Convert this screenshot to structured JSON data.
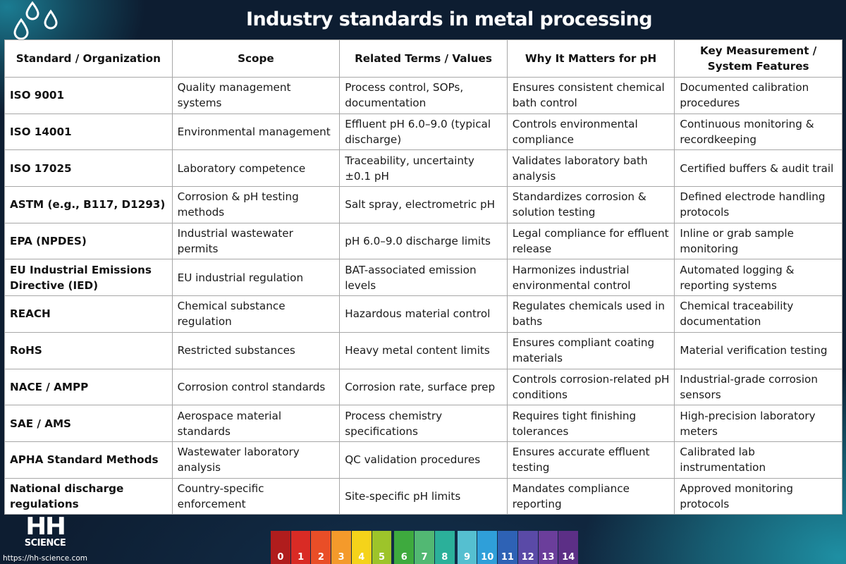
{
  "title": "Industry standards in metal processing",
  "table": {
    "headers": [
      "Standard / Organization",
      "Scope",
      "Related Terms / Values",
      "Why It Matters for pH",
      "Key Measurement / System Features"
    ],
    "rows": [
      [
        "ISO 9001",
        "Quality management systems",
        "Process control, SOPs, documentation",
        "Ensures consistent chemical bath control",
        "Documented calibration procedures"
      ],
      [
        "ISO 14001",
        "Environmental management",
        "Effluent pH 6.0–9.0 (typical discharge)",
        "Controls environmental compliance",
        "Continuous monitoring & recordkeeping"
      ],
      [
        "ISO 17025",
        "Laboratory competence",
        "Traceability, uncertainty ±0.1 pH",
        "Validates laboratory bath analysis",
        "Certified buffers & audit trail"
      ],
      [
        "ASTM (e.g., B117, D1293)",
        "Corrosion & pH testing methods",
        "Salt spray, electrometric pH",
        "Standardizes corrosion & solution testing",
        "Defined electrode handling protocols"
      ],
      [
        "EPA (NPDES)",
        "Industrial wastewater permits",
        "pH 6.0–9.0 discharge limits",
        "Legal compliance for effluent release",
        "Inline or grab sample monitoring"
      ],
      [
        "EU Industrial Emissions Directive (IED)",
        "EU industrial regulation",
        "BAT-associated emission levels",
        "Harmonizes industrial environmental control",
        "Automated logging & reporting systems"
      ],
      [
        "REACH",
        "Chemical substance regulation",
        "Hazardous material control",
        "Regulates chemicals used in baths",
        "Chemical traceability documentation"
      ],
      [
        "RoHS",
        "Restricted substances",
        "Heavy metal content limits",
        "Ensures compliant coating materials",
        "Material verification testing"
      ],
      [
        "NACE / AMPP",
        "Corrosion control standards",
        "Corrosion rate, surface prep",
        "Controls corrosion-related pH conditions",
        "Industrial-grade corrosion sensors"
      ],
      [
        "SAE / AMS",
        "Aerospace material standards",
        "Process chemistry specifications",
        "Requires tight finishing tolerances",
        "High-precision laboratory meters"
      ],
      [
        "APHA Standard Methods",
        "Wastewater laboratory analysis",
        "QC validation procedures",
        "Ensures accurate effluent testing",
        "Calibrated lab instrumentation"
      ],
      [
        "National discharge regulations",
        "Country-specific enforcement",
        "Site-specific pH limits",
        "Mandates compliance reporting",
        "Approved monitoring protocols"
      ]
    ]
  },
  "logo": {
    "line1": "HH",
    "line2": "SCIENCE",
    "url": "https://hh-science.com"
  },
  "ph_scale": [
    {
      "label": "0",
      "color": "#b01d1d"
    },
    {
      "label": "1",
      "color": "#d92b25"
    },
    {
      "label": "2",
      "color": "#e94e27"
    },
    {
      "label": "3",
      "color": "#f49a2b"
    },
    {
      "label": "4",
      "color": "#f5d31a"
    },
    {
      "label": "5",
      "color": "#9dc42a"
    },
    {
      "label": "6",
      "color": "#3eaa3e"
    },
    {
      "label": "7",
      "color": "#52b873"
    },
    {
      "label": "8",
      "color": "#2bb09a"
    },
    {
      "label": "9",
      "color": "#55bfd0"
    },
    {
      "label": "10",
      "color": "#2f9fd9"
    },
    {
      "label": "11",
      "color": "#2e62b5"
    },
    {
      "label": "12",
      "color": "#5a4aa7"
    },
    {
      "label": "13",
      "color": "#6b3e9b"
    },
    {
      "label": "14",
      "color": "#5c2f86"
    }
  ]
}
